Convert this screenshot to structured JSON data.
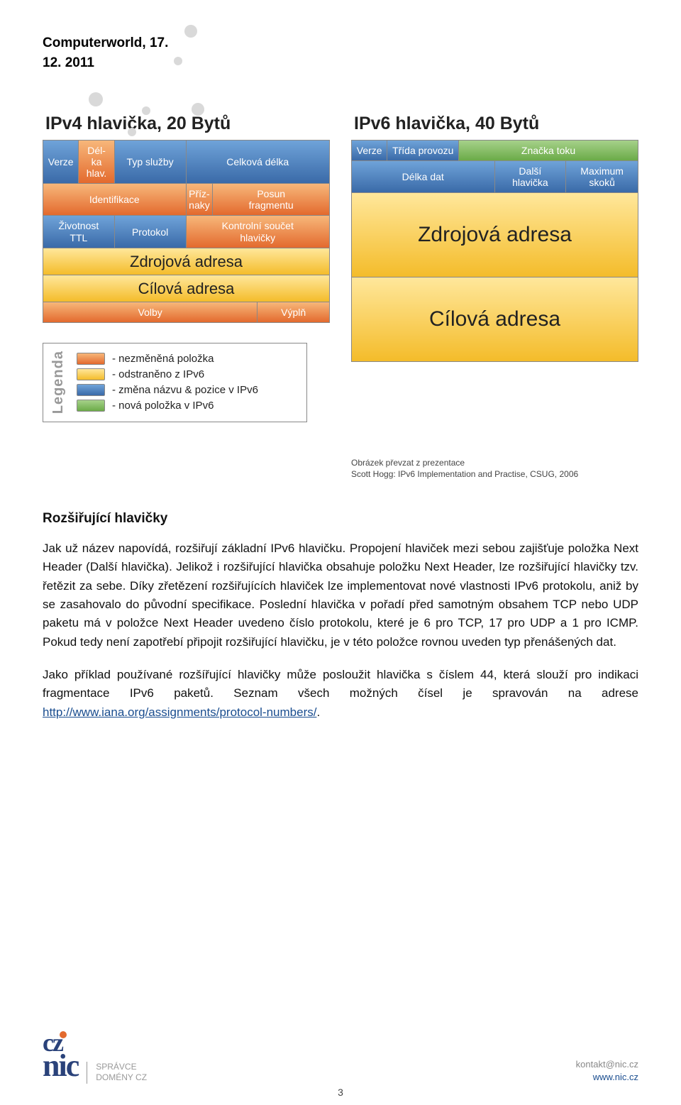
{
  "header": {
    "title": "Computerworld, 17.",
    "date": "12. 2011"
  },
  "ipv4": {
    "title": "IPv4 hlavička, 20 Bytů",
    "rows": [
      [
        {
          "label": "Verze",
          "color": "blue",
          "w": "w4"
        },
        {
          "label": "Dél-\nka\nhlav.",
          "color": "orange",
          "w": "w4"
        },
        {
          "label": "Typ služby",
          "color": "blue",
          "w": "w8"
        },
        {
          "label": "Celková délka",
          "color": "blue",
          "w": "w16"
        }
      ],
      [
        {
          "label": "Identifikace",
          "color": "orange",
          "w": "w16"
        },
        {
          "label": "Příz-\nnaky",
          "color": "orange",
          "w": "w3"
        },
        {
          "label": "Posun\nfragmentu",
          "color": "orange",
          "w": "w13"
        }
      ],
      [
        {
          "label": "Životnost\nTTL",
          "color": "blue",
          "w": "w8"
        },
        {
          "label": "Protokol",
          "color": "blue",
          "w": "w8"
        },
        {
          "label": "Kontrolní součet\nhlavičky",
          "color": "orange",
          "w": "w16"
        }
      ],
      [
        {
          "label": "Zdrojová adresa",
          "color": "yellow",
          "w": "w32"
        }
      ],
      [
        {
          "label": "Cílová adresa",
          "color": "yellow",
          "w": "w32"
        }
      ],
      [
        {
          "label": "Volby",
          "color": "orange",
          "w": "w24"
        },
        {
          "label": "Výplň",
          "color": "orange",
          "w": "w8"
        }
      ]
    ]
  },
  "ipv6": {
    "title": "IPv6 hlavička, 40 Bytů",
    "rows": [
      [
        {
          "label": "Verze",
          "color": "blue",
          "w": "v4"
        },
        {
          "label": "Třída provozu",
          "color": "blue",
          "w": "v8"
        },
        {
          "label": "Značka toku",
          "color": "green",
          "w": "v20"
        }
      ],
      [
        {
          "label": "Délka dat",
          "color": "blue",
          "w": "v16"
        },
        {
          "label": "Další\nhlavička",
          "color": "blue",
          "w": "v8"
        },
        {
          "label": "Maximum\nskoků",
          "color": "blue",
          "w": "v8"
        }
      ],
      [
        {
          "label": "Zdrojová adresa",
          "color": "yellow",
          "w": "v32",
          "tall": true
        }
      ],
      [
        {
          "label": "Cílová adresa",
          "color": "yellow",
          "w": "v32",
          "tall": true
        }
      ]
    ],
    "caption1": "Obrázek převzat z prezentace",
    "caption2": "Scott Hogg: IPv6 Implementation and Practise, CSUG, 2006"
  },
  "legend": {
    "label": "Legenda",
    "items": [
      {
        "swatch": "sw-orange",
        "text": "- nezměněná položka"
      },
      {
        "swatch": "sw-yellow",
        "text": "- odstraněno z IPv6"
      },
      {
        "swatch": "sw-blue",
        "text": "- změna názvu & pozice v IPv6"
      },
      {
        "swatch": "sw-green",
        "text": "- nová položka v IPv6"
      }
    ]
  },
  "body": {
    "heading": "Rozšiřující hlavičky",
    "p1": "Jak už název napovídá, rozšiřují základní IPv6 hlavičku. Propojení hlaviček mezi sebou zajišťuje položka Next Header (Další hlavička). Jelikož i rozšiřující hlavička obsahuje položku Next Header, lze rozšiřující hlavičky tzv. řetězit za sebe. Díky zřetězení rozšiřujících hlaviček lze implementovat nové vlastnosti IPv6 protokolu, aniž by se zasahovalo do původní specifikace. Poslední hlavička v pořadí před samotným obsahem TCP nebo UDP paketu má v položce Next Header uvedeno číslo protokolu, které je 6 pro TCP, 17 pro UDP a 1 pro ICMP. Pokud tedy není zapotřebí připojit rozšiřující hlavičku, je v této položce rovnou uveden typ přenášených dat.",
    "p2a": "Jako příklad používané rozšířující hlavičky může posloužit hlavička s číslem 44, která slouží pro indikaci fragmentace IPv6 paketů. Seznam všech možných čísel je spravován na adrese ",
    "link": "http://www.iana.org/assignments/protocol-numbers/",
    "p2b": "."
  },
  "footer": {
    "logo_top": "cz",
    "logo_bot": "nic",
    "side1": "SPRÁVCE",
    "side2": "DOMÉNY CZ",
    "contact": "kontakt@nic.cz",
    "www": "www.nic.cz",
    "page": "3"
  }
}
